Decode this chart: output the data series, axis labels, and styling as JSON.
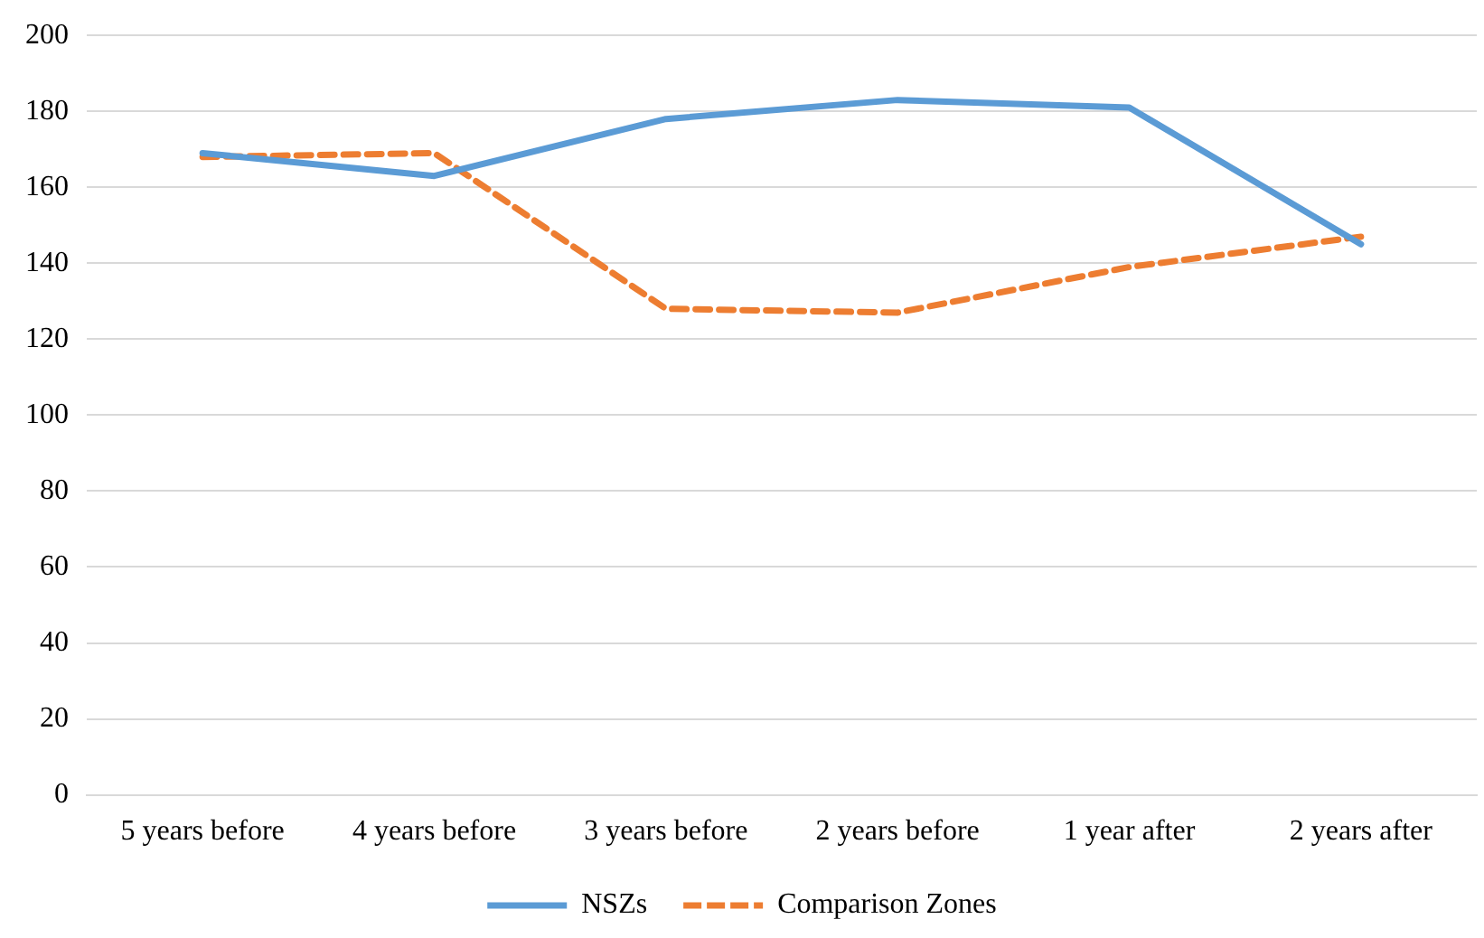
{
  "chart_data": {
    "type": "line",
    "categories": [
      "5 years before",
      "4 years before",
      "3 years before",
      "2 years before",
      "1 year after",
      "2 years after"
    ],
    "series": [
      {
        "name": "NSZs",
        "color": "#5b9bd5",
        "values": [
          169,
          163,
          178,
          183,
          181,
          145
        ],
        "line_style": "solid"
      },
      {
        "name": "Comparison Zones",
        "color": "#ed7d31",
        "values": [
          168,
          169,
          128,
          127,
          139,
          147
        ],
        "line_style": "dashed"
      }
    ],
    "ylim": [
      0,
      200
    ],
    "yticks": [
      0,
      20,
      40,
      60,
      80,
      100,
      120,
      140,
      160,
      180,
      200
    ],
    "grid": "y",
    "legend": "bottom",
    "marker": "none"
  }
}
